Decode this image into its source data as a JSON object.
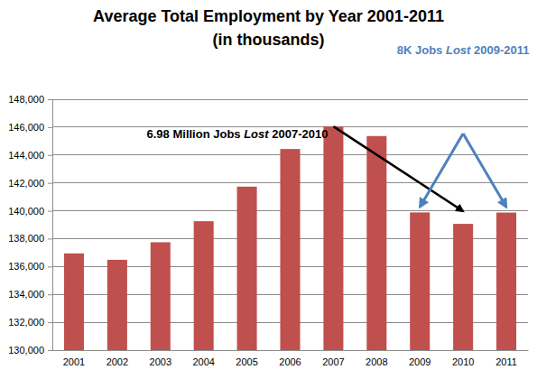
{
  "chart_data": {
    "type": "bar",
    "title": "Average Total Employment by Year 2001-2011",
    "subtitle": "(in thousands)",
    "categories": [
      "2001",
      "2002",
      "2003",
      "2004",
      "2005",
      "2006",
      "2007",
      "2008",
      "2009",
      "2010",
      "2011"
    ],
    "values": [
      136940,
      136480,
      137740,
      139250,
      141730,
      144430,
      146050,
      145360,
      139880,
      139060,
      139870
    ],
    "color": "#c0504d",
    "ylim": [
      130000,
      148000
    ],
    "yticks": [
      {
        "value": 130000,
        "label": "130,000"
      },
      {
        "value": 132000,
        "label": "132,000"
      },
      {
        "value": 134000,
        "label": "134,000"
      },
      {
        "value": 136000,
        "label": "136,000"
      },
      {
        "value": 138000,
        "label": "138,000"
      },
      {
        "value": 140000,
        "label": "140,000"
      },
      {
        "value": 142000,
        "label": "142,000"
      },
      {
        "value": 144000,
        "label": "144,000"
      },
      {
        "value": 146000,
        "label": "146,000"
      },
      {
        "value": 148000,
        "label": "148,000"
      }
    ],
    "grid": true,
    "annotations": [
      {
        "text": "6.98 Million Jobs Lost 2007-2010",
        "emphasis": "Lost",
        "color": "#000000",
        "arrow_from": "2007",
        "arrow_to": [
          "2010"
        ]
      },
      {
        "text": "8K Jobs Lost 2009-2011",
        "emphasis": "Lost",
        "color": "#4f81bd",
        "arrow_to": [
          "2009",
          "2011"
        ]
      }
    ]
  }
}
